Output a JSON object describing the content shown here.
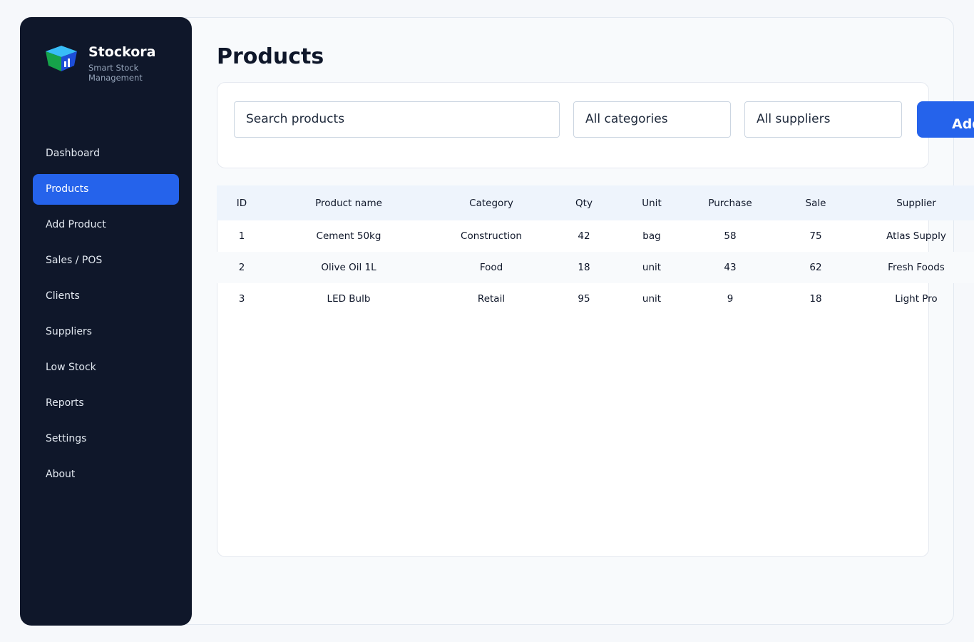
{
  "brand": {
    "name": "Stockora",
    "tagline": "Smart Stock Management"
  },
  "nav": [
    "Dashboard",
    "Products",
    "Add Product",
    "Sales / POS",
    "Clients",
    "Suppliers",
    "Low Stock",
    "Reports",
    "Settings",
    "About"
  ],
  "nav_active": 1,
  "page": {
    "title": "Products"
  },
  "filters": {
    "search": "Search products",
    "category": "All categories",
    "supplier": "All suppliers",
    "button": "Add"
  },
  "table": {
    "columns": [
      "ID",
      "Product name",
      "Category",
      "Qty",
      "Unit",
      "Purchase",
      "Sale",
      "Supplier"
    ],
    "rows": [
      [
        1,
        "Cement 50kg",
        "Construction",
        42,
        "bag",
        58,
        75,
        "Atlas Supply"
      ],
      [
        2,
        "Olive Oil 1L",
        "Food",
        18,
        "unit",
        43,
        62,
        "Fresh Foods"
      ],
      [
        3,
        "LED Bulb",
        "Retail",
        95,
        "unit",
        9,
        18,
        "Light Pro"
      ]
    ]
  }
}
